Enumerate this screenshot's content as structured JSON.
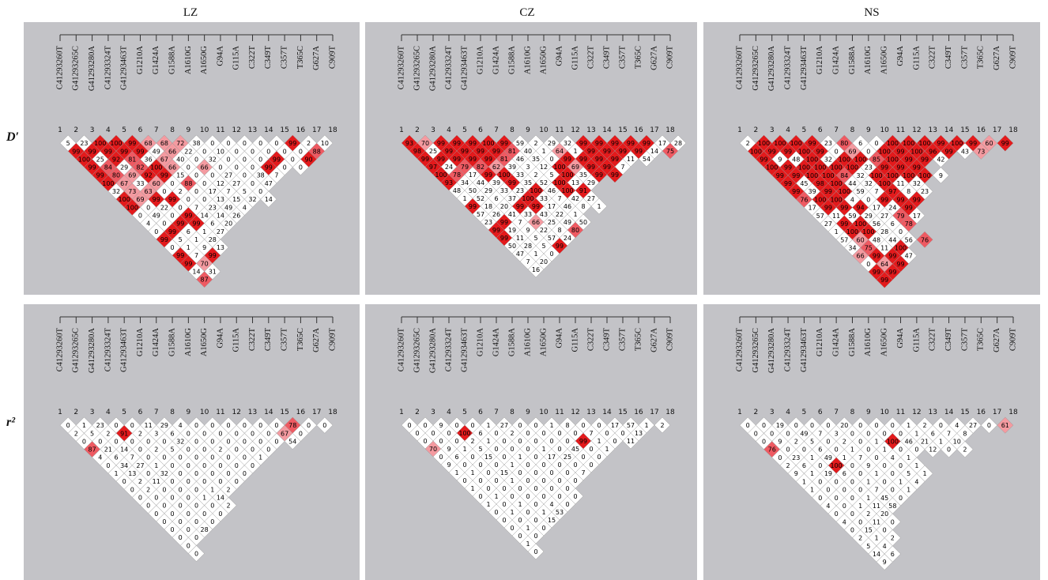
{
  "figure": {
    "column_titles": [
      "LZ",
      "CZ",
      "NS"
    ],
    "row_labels": [
      "D′",
      "r²"
    ],
    "markers": [
      "C41293260T",
      "G41293265C",
      "G41293280A",
      "C41293324T",
      "G41293463T",
      "G1210A",
      "G1424A",
      "G1588A",
      "A1610G",
      "A1650G",
      "G94A",
      "G115A",
      "C322T",
      "C349T",
      "C357T",
      "T365C",
      "G627A",
      "C909T"
    ],
    "numbers": [
      "1",
      "2",
      "3",
      "4",
      "5",
      "6",
      "7",
      "8",
      "9",
      "10",
      "11",
      "12",
      "13",
      "14",
      "15",
      "16",
      "17",
      "18"
    ]
  },
  "chart_data": [
    {
      "type": "heatmap",
      "title": "LZ",
      "row_label": "D′",
      "diagonals": [
        [
          5,
          23,
          100,
          100,
          99,
          68,
          68,
          72,
          38,
          0,
          0,
          0,
          0,
          0,
          99,
          2,
          10
        ],
        [
          99,
          99,
          99,
          99,
          99,
          49,
          66,
          22,
          0,
          10,
          0,
          0,
          0,
          0,
          0,
          88
        ],
        [
          100,
          25,
          92,
          81,
          36,
          67,
          40,
          0,
          32,
          0,
          0,
          0,
          99,
          0,
          90
        ],
        [
          99,
          84,
          29,
          82,
          100,
          66,
          0,
          66,
          0,
          0,
          0,
          99,
          0,
          0
        ],
        [
          99,
          80,
          69,
          92,
          99,
          15,
          0,
          0,
          27,
          0,
          38,
          7
        ],
        [
          100,
          67,
          33,
          60,
          0,
          88,
          0,
          12,
          27,
          0,
          47
        ],
        [
          32,
          73,
          63,
          0,
          2,
          0,
          17,
          7,
          5,
          0
        ],
        [
          100,
          69,
          99,
          99,
          0,
          0,
          13,
          15,
          32,
          14
        ],
        [
          100,
          0,
          22,
          0,
          7,
          23,
          49,
          4
        ],
        [
          0,
          49,
          0,
          99,
          14,
          14,
          26
        ],
        [
          4,
          0,
          99,
          99,
          6,
          20
        ],
        [
          0,
          99,
          6,
          1,
          27
        ],
        [
          99,
          5,
          1,
          28
        ],
        [
          0,
          1,
          9,
          13
        ],
        [
          99,
          7,
          99
        ],
        [
          99,
          70
        ],
        [
          14,
          31
        ],
        [
          87
        ]
      ]
    },
    {
      "type": "heatmap",
      "title": "CZ",
      "row_label": "D′",
      "diagonals": [
        [
          93,
          70,
          99,
          99,
          99,
          100,
          99,
          59,
          2,
          29,
          32,
          99,
          99,
          99,
          99,
          99,
          17,
          28
        ],
        [
          98,
          25,
          99,
          99,
          99,
          99,
          81,
          40,
          1,
          64,
          1,
          99,
          99,
          99,
          99,
          14,
          75
        ],
        [
          99,
          99,
          99,
          99,
          99,
          81,
          46,
          35,
          0,
          99,
          99,
          99,
          99,
          11,
          54
        ],
        [
          97,
          24,
          79,
          82,
          62,
          39,
          3,
          12,
          100,
          69,
          99,
          99,
          7
        ],
        [
          100,
          78,
          17,
          99,
          100,
          33,
          2,
          5,
          100,
          35,
          99,
          99
        ],
        [
          93,
          34,
          44,
          39,
          99,
          35,
          52,
          100,
          13,
          29
        ],
        [
          48,
          50,
          29,
          33,
          23,
          100,
          46,
          100,
          91
        ],
        [
          1,
          52,
          6,
          37,
          100,
          33,
          7,
          42,
          27
        ],
        [
          99,
          18,
          20,
          99,
          99,
          17,
          46,
          8,
          1
        ],
        [
          57,
          26,
          41,
          33,
          43,
          22,
          1
        ],
        [
          23,
          99,
          7,
          66,
          25,
          49,
          50
        ],
        [
          99,
          19,
          9,
          22,
          8,
          80
        ],
        [
          99,
          11,
          5,
          57,
          24
        ],
        [
          50,
          28,
          5,
          99
        ],
        [
          47,
          1,
          0
        ],
        [
          7,
          20
        ],
        [
          16
        ]
      ]
    },
    {
      "type": "heatmap",
      "title": "NS",
      "row_label": "D′",
      "diagonals": [
        [
          2,
          100,
          100,
          100,
          99,
          23,
          80,
          6,
          0,
          100,
          100,
          100,
          99,
          100,
          99,
          60,
          99
        ],
        [
          100,
          99,
          99,
          100,
          99,
          0,
          69,
          0,
          100,
          99,
          100,
          96,
          99,
          43,
          73
        ],
        [
          99,
          9,
          48,
          100,
          32,
          100,
          100,
          85,
          100,
          99,
          99,
          42
        ],
        [
          100,
          99,
          100,
          100,
          100,
          100,
          23,
          99,
          99,
          99
        ],
        [
          99,
          99,
          100,
          100,
          84,
          32,
          100,
          100,
          100,
          100,
          9
        ],
        [
          99,
          45,
          98,
          100,
          44,
          32,
          100,
          11,
          32
        ],
        [
          99,
          39,
          99,
          100,
          59,
          7,
          97,
          8,
          23
        ],
        [
          76,
          100,
          100,
          4,
          0,
          99,
          99,
          99
        ],
        [
          17,
          99,
          99,
          94,
          17,
          24,
          99
        ],
        [
          57,
          11,
          59,
          29,
          27,
          79,
          17
        ],
        [
          27,
          99,
          100,
          56,
          6,
          78
        ],
        [
          1,
          100,
          100,
          28,
          0
        ],
        [
          57,
          60,
          48,
          44,
          56,
          76
        ],
        [
          34,
          75,
          11,
          100
        ],
        [
          66,
          99,
          99,
          47
        ],
        [
          0,
          64,
          99
        ],
        [
          99,
          99
        ],
        [
          99
        ]
      ]
    },
    {
      "type": "heatmap",
      "title": "LZ",
      "row_label": "r²",
      "diagonals": [
        [
          0,
          1,
          23,
          0,
          0,
          11,
          29,
          4,
          0,
          0,
          0,
          0,
          0,
          0,
          78,
          0,
          0
        ],
        [
          2,
          5,
          2,
          91,
          2,
          3,
          6,
          0,
          0,
          0,
          0,
          0,
          0,
          67,
          0
        ],
        [
          0,
          0,
          0,
          0,
          0,
          0,
          32,
          0,
          0,
          0,
          0,
          0,
          0,
          54
        ],
        [
          87,
          21,
          14,
          0,
          2,
          5,
          0,
          0,
          2,
          0,
          0,
          0
        ],
        [
          4,
          6,
          7,
          0,
          0,
          0,
          0,
          0,
          0,
          0,
          1
        ],
        [
          0,
          34,
          27,
          1,
          0,
          0,
          0,
          0,
          0,
          0
        ],
        [
          1,
          13,
          0,
          32,
          0,
          0,
          0,
          0,
          0
        ],
        [
          0,
          2,
          11,
          0,
          0,
          0,
          0,
          0
        ],
        [
          0,
          2,
          0,
          0,
          0,
          1,
          2
        ],
        [
          0,
          0,
          0,
          0,
          1,
          14
        ],
        [
          0,
          0,
          0,
          0,
          0,
          2
        ],
        [
          0,
          0,
          0,
          0,
          0
        ],
        [
          0,
          0,
          0,
          0
        ],
        [
          0,
          0,
          28
        ],
        [
          0,
          0
        ],
        [
          0
        ],
        [
          0
        ]
      ]
    },
    {
      "type": "heatmap",
      "title": "CZ",
      "row_label": "r²",
      "diagonals": [
        [
          0,
          0,
          9,
          0,
          0,
          1,
          27,
          0,
          0,
          1,
          8,
          0,
          0,
          17,
          57,
          1,
          2
        ],
        [
          0,
          0,
          0,
          100,
          6,
          0,
          2,
          0,
          0,
          0,
          0,
          7,
          0,
          0,
          13
        ],
        [
          0,
          0,
          0,
          2,
          1,
          0,
          0,
          0,
          0,
          0,
          99,
          1,
          0,
          11
        ],
        [
          70,
          9,
          1,
          5,
          0,
          0,
          0,
          1,
          0,
          45,
          0,
          1
        ],
        [
          0,
          6,
          0,
          15,
          0,
          1,
          0,
          17,
          25,
          0,
          0
        ],
        [
          9,
          0,
          0,
          0,
          1,
          0,
          0,
          0,
          0,
          0
        ],
        [
          1,
          1,
          0,
          15,
          0,
          0,
          0,
          0,
          7
        ],
        [
          0,
          0,
          0,
          1,
          0,
          0,
          0,
          0
        ],
        [
          1,
          0,
          0,
          0,
          0,
          0,
          0
        ],
        [
          0,
          1,
          0,
          0,
          0,
          0,
          0
        ],
        [
          1,
          0,
          1,
          0,
          4,
          0
        ],
        [
          0,
          1,
          0,
          1,
          53
        ],
        [
          0,
          0,
          0,
          15
        ],
        [
          0,
          1,
          0
        ],
        [
          0,
          0
        ],
        [
          1
        ],
        [
          0
        ]
      ]
    },
    {
      "type": "heatmap",
      "title": "NS",
      "row_label": "r²",
      "diagonals": [
        [
          0,
          0,
          19,
          0,
          0,
          0,
          20,
          0,
          0,
          0,
          1,
          2,
          0,
          4,
          27,
          0,
          61
        ],
        [
          0,
          0,
          0,
          49,
          7,
          3,
          0,
          0,
          0,
          0,
          1,
          6,
          7,
          8
        ],
        [
          0,
          9,
          2,
          5,
          0,
          2,
          0,
          1,
          100,
          46,
          21,
          1,
          10
        ],
        [
          76,
          0,
          0,
          6,
          0,
          1,
          0,
          1,
          0,
          0,
          12,
          0,
          2
        ],
        [
          0,
          23,
          1,
          49,
          1,
          7,
          0,
          4,
          1
        ],
        [
          2,
          6,
          0,
          100,
          0,
          9,
          0,
          0,
          1
        ],
        [
          9,
          1,
          19,
          6,
          0,
          1,
          0,
          5,
          1
        ],
        [
          1,
          0,
          0,
          0,
          1,
          0,
          1,
          4
        ],
        [
          1,
          0,
          0,
          0,
          7,
          0,
          1
        ],
        [
          0,
          0,
          0,
          1,
          45,
          0
        ],
        [
          4,
          0,
          1,
          11,
          58
        ],
        [
          0,
          0,
          2,
          20
        ],
        [
          4,
          0,
          11,
          0
        ],
        [
          0,
          15,
          0
        ],
        [
          2,
          1,
          2
        ],
        [
          5,
          4
        ],
        [
          14,
          6
        ],
        [
          9
        ]
      ]
    }
  ]
}
